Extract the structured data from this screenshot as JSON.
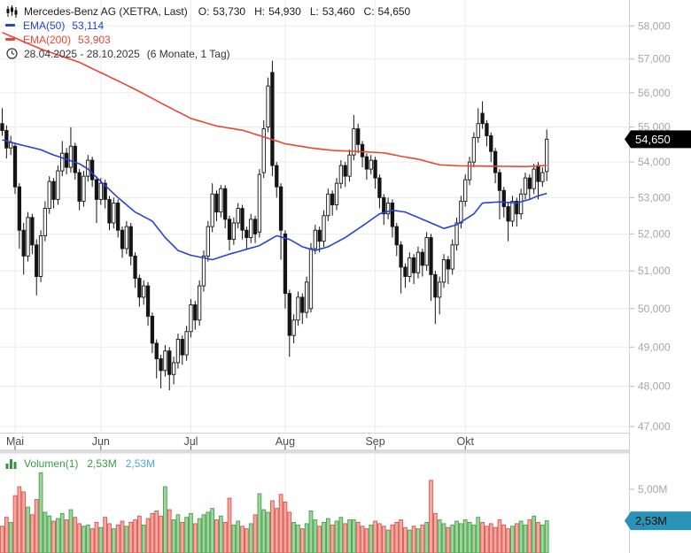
{
  "header": {
    "title": "Mercedes-Benz AG (XETRA, Last)",
    "ohlc": {
      "o_label": "O:",
      "o": "53,730",
      "h_label": "H:",
      "h": "54,930",
      "l_label": "L:",
      "l": "53,460",
      "c_label": "C:",
      "c": "54,650"
    },
    "indicators": [
      {
        "name": "EMA(50)",
        "value": "53,114",
        "color": "#2743d3"
      },
      {
        "name": "EMA(200)",
        "value": "53,903",
        "color": "#ee4433"
      }
    ],
    "date_range": "28.04.2025 - 28.10.2025",
    "period": "(6 Monate, 1 Tag)"
  },
  "volume_legend": {
    "name": "Volumen(1)",
    "value_green": "2,53M",
    "value_blue": "2,53M"
  },
  "price_axis": {
    "badge_label": "54,650",
    "badge_bg": "#000000",
    "badge_text_color": "#ffffff"
  },
  "volume_axis": {
    "tick_label": "5,00M",
    "tick_value": 5.0,
    "badge_label": "2,53M",
    "badge_value": 2.53,
    "badge_bg": "#2a93b7",
    "badge_text_color": "#111111"
  },
  "chart_data": {
    "type": "candlestick",
    "title": "Mercedes-Benz AG (XETRA, Last)",
    "interval": "1 Tag",
    "range": "28.04.2025 - 28.10.2025",
    "scale": "log",
    "price_ticks": [
      58,
      57,
      56,
      55,
      54,
      53,
      52,
      51,
      50,
      49,
      48,
      47
    ],
    "price_tick_suffix": ",000",
    "ylim_log_map": {
      "a": 8769.8,
      "b": 2152.6
    },
    "months": [
      {
        "label": "Mai",
        "index": 3
      },
      {
        "label": "Jun",
        "index": 23
      },
      {
        "label": "Jul",
        "index": 44
      },
      {
        "label": "Aug",
        "index": 66
      },
      {
        "label": "Sep",
        "index": 87
      },
      {
        "label": "Okt",
        "index": 108
      }
    ],
    "last_close": 54.65,
    "last_volume_m": 2.53,
    "candles": [
      [
        55.1,
        55.55,
        54.75,
        54.9
      ],
      [
        54.9,
        55.05,
        54.1,
        54.4
      ],
      [
        54.4,
        54.75,
        54.2,
        54.55
      ],
      [
        54.45,
        54.55,
        53.1,
        53.3
      ],
      [
        53.3,
        53.4,
        51.6,
        52.1
      ],
      [
        52.1,
        52.3,
        50.9,
        51.4
      ],
      [
        51.4,
        52.6,
        51.25,
        52.45
      ],
      [
        52.45,
        52.55,
        51.45,
        51.7
      ],
      [
        51.7,
        51.85,
        50.35,
        50.85
      ],
      [
        50.85,
        52.1,
        50.7,
        51.95
      ],
      [
        51.95,
        52.9,
        51.8,
        52.7
      ],
      [
        52.7,
        53.6,
        52.55,
        53.45
      ],
      [
        53.45,
        53.55,
        52.7,
        52.95
      ],
      [
        52.95,
        53.9,
        52.8,
        53.75
      ],
      [
        53.75,
        54.6,
        53.6,
        54.25
      ],
      [
        54.25,
        54.4,
        53.65,
        53.85
      ],
      [
        53.85,
        55.0,
        53.7,
        54.45
      ],
      [
        54.45,
        54.55,
        53.5,
        53.7
      ],
      [
        53.7,
        53.8,
        52.65,
        52.9
      ],
      [
        52.9,
        53.75,
        52.75,
        53.6
      ],
      [
        53.6,
        54.2,
        53.45,
        54.05
      ],
      [
        54.05,
        54.15,
        53.3,
        53.5
      ],
      [
        53.5,
        53.6,
        52.3,
        52.95
      ],
      [
        52.95,
        53.55,
        52.8,
        53.4
      ],
      [
        53.4,
        53.5,
        52.7,
        52.95
      ],
      [
        52.95,
        53.05,
        52.1,
        52.3
      ],
      [
        52.3,
        53.0,
        52.15,
        52.85
      ],
      [
        52.85,
        52.95,
        51.9,
        52.1
      ],
      [
        52.1,
        52.2,
        51.35,
        51.6
      ],
      [
        51.6,
        52.35,
        51.45,
        52.2
      ],
      [
        52.2,
        52.3,
        51.15,
        51.4
      ],
      [
        51.4,
        51.5,
        50.55,
        50.8
      ],
      [
        50.8,
        50.9,
        50.05,
        50.3
      ],
      [
        50.3,
        50.75,
        50.1,
        50.6
      ],
      [
        50.6,
        50.7,
        49.55,
        49.8
      ],
      [
        49.8,
        49.9,
        48.85,
        49.1
      ],
      [
        49.1,
        49.2,
        48.2,
        48.7
      ],
      [
        48.7,
        48.8,
        47.95,
        48.4
      ],
      [
        48.4,
        49.05,
        48.25,
        48.9
      ],
      [
        48.9,
        49.0,
        47.9,
        48.3
      ],
      [
        48.3,
        48.75,
        48.05,
        48.6
      ],
      [
        48.6,
        49.35,
        48.45,
        49.2
      ],
      [
        49.2,
        49.3,
        48.55,
        48.8
      ],
      [
        48.8,
        49.55,
        48.65,
        49.4
      ],
      [
        49.4,
        50.25,
        49.25,
        50.1
      ],
      [
        50.1,
        50.2,
        49.45,
        49.7
      ],
      [
        49.7,
        50.75,
        49.55,
        50.6
      ],
      [
        50.6,
        51.55,
        50.45,
        51.4
      ],
      [
        51.4,
        52.35,
        51.25,
        52.2
      ],
      [
        52.2,
        53.4,
        52.05,
        53.1
      ],
      [
        53.1,
        53.2,
        52.35,
        52.6
      ],
      [
        52.6,
        53.35,
        52.45,
        53.25
      ],
      [
        53.25,
        53.35,
        52.15,
        52.4
      ],
      [
        52.4,
        52.5,
        51.55,
        51.85
      ],
      [
        51.85,
        52.45,
        51.7,
        52.3
      ],
      [
        52.3,
        52.85,
        52.15,
        52.7
      ],
      [
        52.7,
        52.8,
        51.85,
        52.1
      ],
      [
        52.1,
        52.2,
        51.6,
        51.9
      ],
      [
        51.9,
        52.55,
        51.75,
        52.4
      ],
      [
        52.4,
        52.5,
        51.75,
        52.0
      ],
      [
        52.05,
        53.8,
        51.9,
        53.65
      ],
      [
        53.7,
        55.2,
        53.55,
        54.95
      ],
      [
        55.0,
        56.45,
        54.85,
        56.2
      ],
      [
        56.6,
        56.95,
        53.6,
        53.9
      ],
      [
        53.9,
        54.0,
        53.0,
        53.3
      ],
      [
        53.3,
        53.4,
        51.3,
        52.1
      ],
      [
        52.0,
        52.1,
        50.0,
        50.4
      ],
      [
        50.4,
        50.5,
        48.75,
        49.3
      ],
      [
        49.3,
        49.85,
        49.1,
        49.7
      ],
      [
        49.7,
        50.45,
        49.55,
        50.3
      ],
      [
        50.3,
        50.4,
        49.6,
        49.9
      ],
      [
        49.9,
        50.85,
        49.75,
        50.7
      ],
      [
        50.0,
        51.75,
        49.9,
        51.6
      ],
      [
        51.6,
        52.25,
        51.45,
        52.1
      ],
      [
        52.1,
        52.2,
        51.5,
        51.8
      ],
      [
        51.8,
        52.65,
        51.65,
        52.5
      ],
      [
        52.5,
        53.25,
        52.35,
        53.1
      ],
      [
        53.1,
        53.2,
        52.5,
        52.8
      ],
      [
        52.8,
        53.55,
        52.65,
        53.4
      ],
      [
        53.4,
        54.05,
        53.25,
        53.9
      ],
      [
        53.9,
        54.0,
        53.3,
        53.6
      ],
      [
        53.6,
        54.35,
        53.45,
        54.2
      ],
      [
        54.2,
        55.35,
        54.05,
        54.95
      ],
      [
        54.95,
        55.1,
        54.25,
        54.5
      ],
      [
        54.5,
        54.6,
        53.85,
        54.15
      ],
      [
        54.15,
        54.25,
        53.5,
        53.8
      ],
      [
        53.8,
        54.2,
        53.65,
        54.05
      ],
      [
        54.05,
        54.15,
        53.25,
        53.55
      ],
      [
        53.55,
        53.65,
        52.7,
        53.0
      ],
      [
        53.0,
        53.1,
        52.25,
        52.55
      ],
      [
        52.55,
        53.0,
        52.4,
        52.85
      ],
      [
        52.85,
        52.95,
        51.9,
        52.2
      ],
      [
        52.2,
        52.3,
        51.4,
        51.7
      ],
      [
        51.7,
        51.8,
        50.4,
        51.1
      ],
      [
        51.1,
        51.2,
        50.55,
        50.85
      ],
      [
        50.85,
        51.5,
        50.7,
        51.35
      ],
      [
        51.35,
        51.45,
        50.65,
        50.95
      ],
      [
        50.95,
        51.65,
        50.8,
        51.5
      ],
      [
        51.5,
        51.6,
        50.85,
        51.15
      ],
      [
        51.15,
        52.05,
        51.0,
        51.9
      ],
      [
        51.9,
        52.0,
        50.2,
        50.9
      ],
      [
        50.9,
        51.0,
        49.6,
        50.3
      ],
      [
        50.3,
        50.85,
        49.85,
        50.7
      ],
      [
        50.7,
        51.45,
        50.55,
        51.3
      ],
      [
        51.3,
        51.4,
        50.65,
        51.05
      ],
      [
        51.05,
        51.85,
        50.9,
        51.7
      ],
      [
        51.7,
        52.45,
        51.55,
        52.3
      ],
      [
        52.3,
        53.05,
        52.15,
        52.9
      ],
      [
        52.9,
        53.65,
        52.75,
        53.5
      ],
      [
        53.5,
        54.15,
        53.35,
        54.0
      ],
      [
        54.0,
        54.85,
        53.85,
        54.7
      ],
      [
        54.7,
        55.55,
        54.55,
        55.1
      ],
      [
        55.4,
        55.75,
        54.95,
        55.1
      ],
      [
        55.1,
        55.2,
        54.45,
        54.75
      ],
      [
        54.75,
        54.85,
        54.0,
        54.3
      ],
      [
        54.3,
        54.4,
        53.4,
        53.7
      ],
      [
        53.7,
        53.8,
        52.4,
        53.2
      ],
      [
        53.2,
        53.3,
        52.45,
        52.75
      ],
      [
        52.75,
        52.85,
        51.8,
        52.35
      ],
      [
        52.35,
        53.05,
        52.2,
        52.9
      ],
      [
        52.9,
        53.0,
        52.2,
        52.55
      ],
      [
        52.55,
        53.25,
        52.4,
        53.1
      ],
      [
        53.1,
        53.7,
        52.95,
        53.55
      ],
      [
        53.55,
        53.65,
        52.95,
        53.25
      ],
      [
        53.25,
        53.95,
        53.1,
        53.8
      ],
      [
        53.9,
        54.0,
        52.95,
        53.45
      ],
      [
        53.45,
        53.85,
        53.3,
        53.7
      ],
      [
        53.73,
        54.93,
        53.46,
        54.65
      ]
    ],
    "volumes_m": [
      2.1,
      2.8,
      2.4,
      4.5,
      5.2,
      4.8,
      3.6,
      3.0,
      4.2,
      6.3,
      3.2,
      2.9,
      2.5,
      2.7,
      3.1,
      2.6,
      3.4,
      2.8,
      2.3,
      2.1,
      2.2,
      1.9,
      2.4,
      2.0,
      2.8,
      2.3,
      1.9,
      2.2,
      2.5,
      2.1,
      2.4,
      2.6,
      2.9,
      2.2,
      2.7,
      3.1,
      3.3,
      2.9,
      5.2,
      3.4,
      2.6,
      3.0,
      2.4,
      2.8,
      3.1,
      2.3,
      2.7,
      3.0,
      3.2,
      3.5,
      2.6,
      2.9,
      2.4,
      4.3,
      2.2,
      2.5,
      2.1,
      1.9,
      2.3,
      3.0,
      4.65,
      3.4,
      3.2,
      4.1,
      3.5,
      4.6,
      4.0,
      3.2,
      2.4,
      2.2,
      1.9,
      2.3,
      3.3,
      2.6,
      2.1,
      2.4,
      2.7,
      2.2,
      2.5,
      2.8,
      2.3,
      2.6,
      2.6,
      2.4,
      2.1,
      1.9,
      2.2,
      2.5,
      2.3,
      2.1,
      1.8,
      2.2,
      2.4,
      2.6,
      2.0,
      1.8,
      2.1,
      1.9,
      2.2,
      2.4,
      5.7,
      3.1,
      2.6,
      2.3,
      2.0,
      2.2,
      2.5,
      2.3,
      2.6,
      2.4,
      2.2,
      2.8,
      2.4,
      2.1,
      2.3,
      2.0,
      2.6,
      2.2,
      1.9,
      2.1,
      2.3,
      2.5,
      2.2,
      2.6,
      2.9,
      2.4,
      2.2,
      2.53
    ],
    "ema50_anchors": [
      [
        0,
        54.63
      ],
      [
        4,
        54.5
      ],
      [
        9,
        54.35
      ],
      [
        12,
        54.2
      ],
      [
        18,
        53.95
      ],
      [
        20,
        53.8
      ],
      [
        23,
        53.45
      ],
      [
        27,
        53.0
      ],
      [
        31,
        52.6
      ],
      [
        35,
        52.35
      ],
      [
        38,
        51.9
      ],
      [
        41,
        51.55
      ],
      [
        44,
        51.42
      ],
      [
        47,
        51.35
      ],
      [
        49,
        51.3
      ],
      [
        53,
        51.45
      ],
      [
        56,
        51.55
      ],
      [
        60,
        51.68
      ],
      [
        64,
        51.95
      ],
      [
        67,
        51.85
      ],
      [
        70,
        51.65
      ],
      [
        73,
        51.55
      ],
      [
        76,
        51.65
      ],
      [
        80,
        51.9
      ],
      [
        85,
        52.3
      ],
      [
        88,
        52.55
      ],
      [
        91,
        52.65
      ],
      [
        94,
        52.6
      ],
      [
        97,
        52.45
      ],
      [
        100,
        52.3
      ],
      [
        103,
        52.15
      ],
      [
        106,
        52.25
      ],
      [
        110,
        52.55
      ],
      [
        112,
        52.85
      ],
      [
        116,
        52.88
      ],
      [
        120,
        52.85
      ],
      [
        123,
        52.95
      ],
      [
        125,
        53.05
      ],
      [
        127,
        53.114
      ]
    ],
    "ema200_anchors": [
      [
        0,
        57.8
      ],
      [
        9,
        57.3
      ],
      [
        18,
        56.9
      ],
      [
        27,
        56.35
      ],
      [
        31,
        56.1
      ],
      [
        37,
        55.7
      ],
      [
        44,
        55.25
      ],
      [
        50,
        55.03
      ],
      [
        56,
        54.91
      ],
      [
        62,
        54.68
      ],
      [
        66,
        54.52
      ],
      [
        72,
        54.4
      ],
      [
        77,
        54.33
      ],
      [
        83,
        54.3
      ],
      [
        89,
        54.26
      ],
      [
        94,
        54.14
      ],
      [
        97,
        54.08
      ],
      [
        102,
        53.92
      ],
      [
        107,
        53.89
      ],
      [
        116,
        53.88
      ],
      [
        122,
        53.87
      ],
      [
        127,
        53.903
      ]
    ],
    "colors": {
      "candle_up_fill": "#ffffff",
      "candle_down_fill": "#141414",
      "candle_stroke": "#141414",
      "ema50": "#2743d3",
      "ema200": "#ee4433",
      "vol_up_fill": "#9fd49c",
      "vol_up_stroke": "#44a04a",
      "vol_down_fill": "#f4a9a3",
      "vol_down_stroke": "#d9534a",
      "grid": "#ececec",
      "axis_line": "#d2d2d2",
      "separator_bar": "#dcdcdc",
      "price_tick_text": "#a6a6a6",
      "month_tick_text": "#4a4a4a"
    }
  }
}
